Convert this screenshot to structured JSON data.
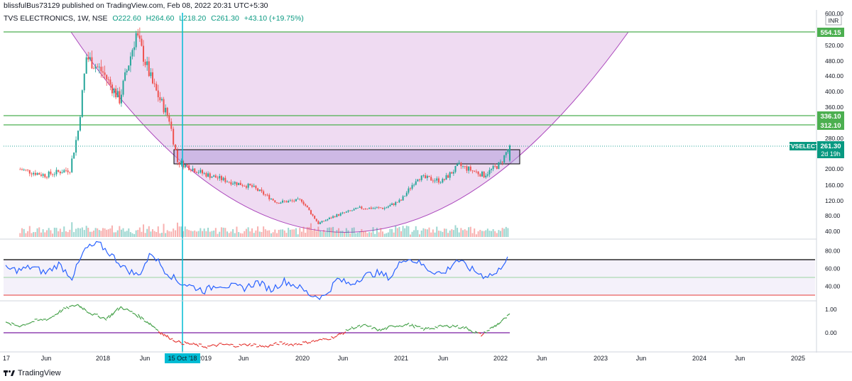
{
  "header": {
    "published_by": "blissfulBus73129 published on TradingView.com, Feb 08, 2022 20:31 UTC+5:30",
    "symbol": "TVS ELECTRONICS, 1W, NSE",
    "open": "O222.60",
    "high": "H264.60",
    "low": "L218.20",
    "close": "C261.30",
    "change": "+43.10 (+19.75%)"
  },
  "footer": {
    "brand": "TradingView"
  },
  "currency": "INR",
  "price_badge": {
    "ticker": "TVSELECT",
    "price": "261.30",
    "countdown": "2d 19h",
    "color": "#089981"
  },
  "level_labels": [
    "554.15",
    "336.10",
    "312.10"
  ],
  "crosshair_date": "15 Oct '18",
  "colors": {
    "up": "#26a69a",
    "down": "#ef5350",
    "level": "#4caf50",
    "bowl": "#e1bee7",
    "rsi": "#2962ff",
    "cross": "#00bcd4",
    "osc_pos": "#43a047",
    "osc_neg": "#e53935"
  },
  "chart_data": [
    {
      "type": "candlestick",
      "title": "TVS ELECTRONICS, 1W, NSE",
      "y_ticks": [
        40,
        80,
        120,
        160,
        200,
        240,
        280,
        360,
        400,
        440,
        480,
        520,
        600
      ],
      "x_ticks": [
        "17",
        "Jun",
        "2018",
        "Jun",
        "2019",
        "Jun",
        "2020",
        "Jun",
        "2021",
        "Jun",
        "2022",
        "Jun",
        "2023",
        "Jun",
        "2024",
        "Jun",
        "2025"
      ],
      "horizontal_levels": [
        554.15,
        336.1,
        312.1
      ],
      "last_price": 261.3,
      "series": [
        {
          "name": "Price",
          "points": [
            {
              "date": "2017-03",
              "close": 200
            },
            {
              "date": "2017-06",
              "close": 185
            },
            {
              "date": "2017-09",
              "close": 200
            },
            {
              "date": "2017-10",
              "close": 300
            },
            {
              "date": "2017-11",
              "close": 490
            },
            {
              "date": "2018-01",
              "close": 450
            },
            {
              "date": "2018-03",
              "close": 380
            },
            {
              "date": "2018-05",
              "close": 550
            },
            {
              "date": "2018-07",
              "close": 420
            },
            {
              "date": "2018-09",
              "close": 330
            },
            {
              "date": "2018-10",
              "close": 220
            },
            {
              "date": "2019-01",
              "close": 190
            },
            {
              "date": "2019-04",
              "close": 170
            },
            {
              "date": "2019-07",
              "close": 155
            },
            {
              "date": "2019-10",
              "close": 115
            },
            {
              "date": "2020-01",
              "close": 120
            },
            {
              "date": "2020-03",
              "close": 60
            },
            {
              "date": "2020-05",
              "close": 80
            },
            {
              "date": "2020-08",
              "close": 100
            },
            {
              "date": "2020-11",
              "close": 100
            },
            {
              "date": "2021-01",
              "close": 120
            },
            {
              "date": "2021-03",
              "close": 180
            },
            {
              "date": "2021-06",
              "close": 170
            },
            {
              "date": "2021-08",
              "close": 210
            },
            {
              "date": "2021-11",
              "close": 185
            },
            {
              "date": "2022-01",
              "close": 215
            },
            {
              "date": "2022-02",
              "close": 261.3
            }
          ]
        }
      ]
    },
    {
      "type": "line",
      "title": "",
      "y_ticks": [
        40.0,
        60.0,
        80.0
      ],
      "levels": [
        70,
        30
      ],
      "series": [
        {
          "name": "",
          "values": [
            60,
            58,
            62,
            55,
            65,
            50,
            82,
            88,
            75,
            60,
            52,
            78,
            58,
            45,
            40,
            35,
            42,
            40,
            38,
            45,
            36,
            46,
            40,
            30,
            28,
            48,
            42,
            52,
            55,
            50,
            72,
            68,
            58,
            54,
            70,
            60,
            52,
            54,
            78
          ]
        }
      ]
    },
    {
      "type": "line",
      "title": "",
      "y_ticks": [
        0.0,
        1.0
      ],
      "series": [
        {
          "name": "",
          "values": [
            0.4,
            0.3,
            0.5,
            0.6,
            1.0,
            1.2,
            0.8,
            0.6,
            1.1,
            0.8,
            0.4,
            -0.1,
            -0.4,
            -0.5,
            -0.6,
            -0.5,
            -0.55,
            -0.5,
            -0.6,
            -0.45,
            -0.5,
            -0.4,
            -0.3,
            -0.15,
            0.2,
            0.3,
            0.1,
            0.3,
            0.35,
            0.15,
            0.25,
            0.3,
            0.2,
            -0.1,
            0.3,
            0.75
          ]
        }
      ]
    }
  ]
}
